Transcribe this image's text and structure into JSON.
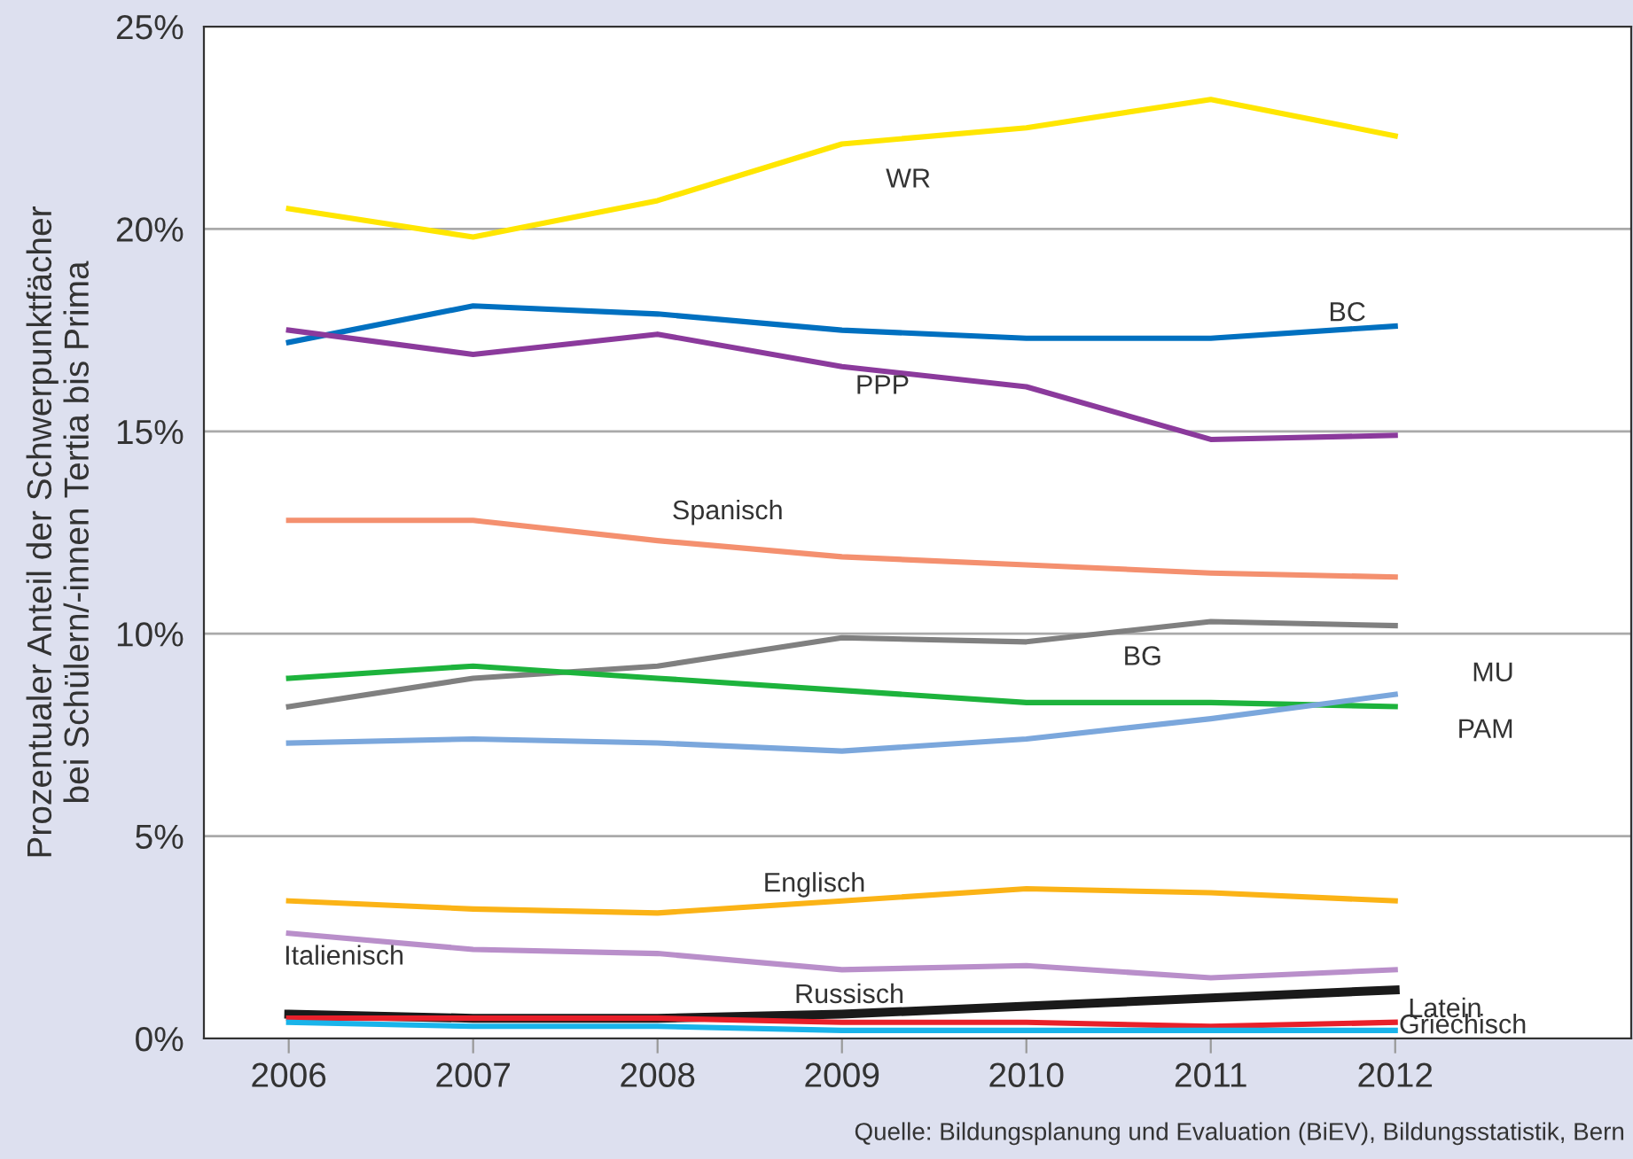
{
  "chart_data": {
    "type": "line",
    "ylabel": "Prozentualer Anteil der Schwerpunktfächer\nbei Schülern/-innen Tertia bis Prima",
    "x": [
      2006,
      2007,
      2008,
      2009,
      2010,
      2011,
      2012
    ],
    "xlim": [
      2005.54,
      2013.28
    ],
    "xticks": [
      2006,
      2007,
      2008,
      2009,
      2010,
      2011,
      2012
    ],
    "ylim": [
      0,
      25
    ],
    "yticks": [
      {
        "value": 0,
        "label": "0%"
      },
      {
        "value": 5,
        "label": "5%"
      },
      {
        "value": 10,
        "label": "10%"
      },
      {
        "value": 15,
        "label": "15%"
      },
      {
        "value": 20,
        "label": "20%"
      },
      {
        "value": 25,
        "label": "25%"
      }
    ],
    "grid": "y",
    "legend": false,
    "marker": "none",
    "line_style": "solid",
    "series": [
      {
        "name": "WR",
        "color": "#ffe600",
        "values": [
          20.5,
          19.8,
          20.7,
          22.1,
          22.5,
          23.2,
          22.3
        ]
      },
      {
        "name": "BC",
        "color": "#0070c0",
        "values": [
          17.2,
          18.1,
          17.9,
          17.5,
          17.3,
          17.3,
          17.6
        ]
      },
      {
        "name": "PPP",
        "color": "#8b3a9c",
        "values": [
          17.5,
          16.9,
          17.4,
          16.6,
          16.1,
          14.8,
          14.9
        ]
      },
      {
        "name": "Spanisch",
        "color": "#f4906f",
        "values": [
          12.8,
          12.8,
          12.3,
          11.9,
          11.7,
          11.5,
          11.4
        ]
      },
      {
        "name": "BG",
        "color": "#808080",
        "values": [
          8.2,
          8.9,
          9.2,
          9.9,
          9.8,
          10.3,
          10.2
        ]
      },
      {
        "name": "PAM",
        "color": "#1db33c",
        "values": [
          8.9,
          9.2,
          8.9,
          8.6,
          8.3,
          8.3,
          8.2
        ]
      },
      {
        "name": "MU",
        "color": "#7ba7dc",
        "values": [
          7.3,
          7.4,
          7.3,
          7.1,
          7.4,
          7.9,
          8.5
        ]
      },
      {
        "name": "Englisch",
        "color": "#fbb316",
        "values": [
          3.4,
          3.2,
          3.1,
          3.4,
          3.7,
          3.6,
          3.4
        ]
      },
      {
        "name": "Italienisch",
        "color": "#b98fca",
        "values": [
          2.6,
          2.2,
          2.1,
          1.7,
          1.8,
          1.5,
          1.7
        ]
      },
      {
        "name": "Russisch",
        "color": "#1a1a1a",
        "values": [
          0.6,
          0.5,
          0.5,
          0.6,
          0.8,
          1.0,
          1.2
        ]
      },
      {
        "name": "Latein",
        "color": "#e8202a",
        "values": [
          0.5,
          0.5,
          0.5,
          0.4,
          0.4,
          0.3,
          0.4
        ]
      },
      {
        "name": "Griechisch",
        "color": "#19b4ea",
        "values": [
          0.4,
          0.3,
          0.3,
          0.2,
          0.2,
          0.2,
          0.2
        ]
      }
    ],
    "annotations": [
      "Quelle: Bildungsplanung und Evaluation (BiEV), Bildungsstatistik, Bern"
    ]
  }
}
